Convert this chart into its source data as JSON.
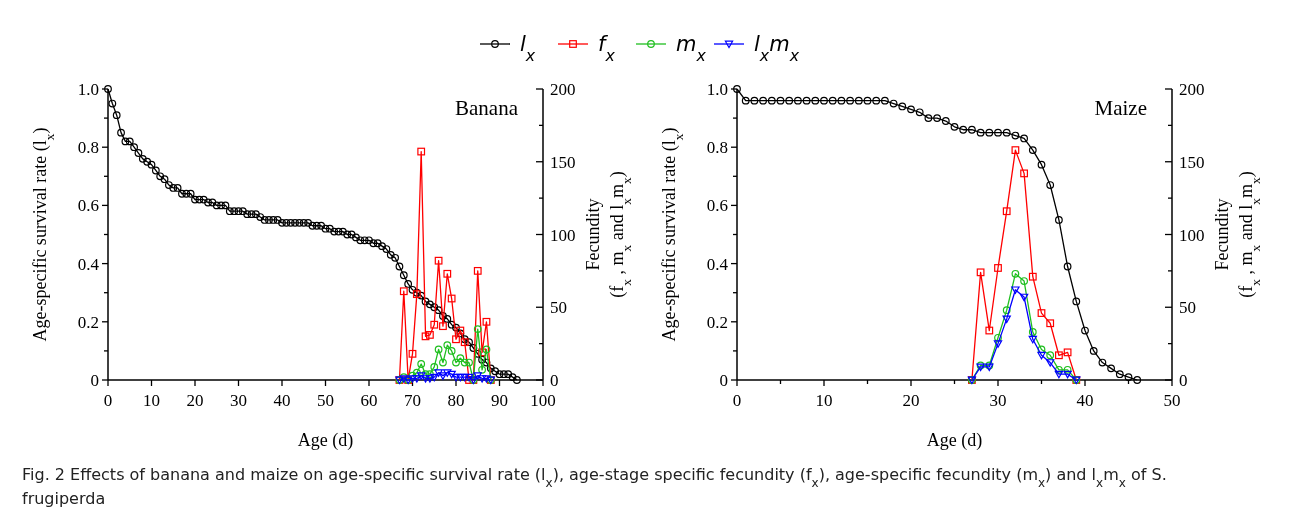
{
  "chart_data": [
    {
      "type": "line",
      "title": "Banana",
      "xlabel": "Age (d)",
      "ylabel": "Age-specific survival rate (l$_{x}$)",
      "y2label": "Fecundity\n(f$_{x}$ , m$_{x}$ and l$_{x}$m$_{x}$)",
      "legend": "top",
      "grid": false,
      "annotations": [
        "Fig. 2  Effects of banana and maize on age-specific survival rate (l$_{x}$), age-stage specific fecundity (f$_{x}$), age-specific fecundity (m$_{x}$) and l$_{x}$m$_{x}$ of S. frugiperda"
      ],
      "xlim": [
        0,
        100
      ],
      "xticks": [
        0,
        10,
        20,
        30,
        40,
        50,
        60,
        70,
        80,
        90,
        100
      ],
      "ylim": [
        0,
        1
      ],
      "yticks": [
        0,
        {
          "value": 0.1,
          "label": null
        },
        0.2,
        {
          "value": 0.3,
          "label": null
        },
        0.4,
        {
          "value": 0.5,
          "label": null
        },
        0.6,
        {
          "value": 0.7,
          "label": null
        },
        0.8,
        {
          "value": 0.9,
          "label": null
        },
        {
          "value": 1,
          "label": "1.0"
        }
      ],
      "y2lim": [
        0,
        200
      ],
      "y2ticks": [
        0,
        {
          "value": 25,
          "label": null
        },
        50,
        {
          "value": 75,
          "label": null
        },
        100,
        {
          "value": 125,
          "label": null
        },
        150,
        {
          "value": 175,
          "label": null
        },
        200
      ],
      "series": [
        {
          "name": "l$_{x}$",
          "color": "#000000",
          "marker": "circle",
          "x": [
            0,
            1,
            2,
            3,
            4,
            5,
            6,
            7,
            8,
            9,
            10,
            11,
            12,
            13,
            14,
            15,
            16,
            17,
            18,
            19,
            20,
            21,
            22,
            23,
            24,
            25,
            26,
            27,
            28,
            29,
            30,
            31,
            32,
            33,
            34,
            35,
            36,
            37,
            38,
            39,
            40,
            41,
            42,
            43,
            44,
            45,
            46,
            47,
            48,
            49,
            50,
            51,
            52,
            53,
            54,
            55,
            56,
            57,
            58,
            59,
            60,
            61,
            62,
            63,
            64,
            65,
            66,
            67,
            68,
            69,
            70,
            71,
            72,
            73,
            74,
            75,
            76,
            77,
            78,
            79,
            80,
            81,
            82,
            83,
            84,
            85,
            86,
            87,
            88,
            89,
            90,
            91,
            92,
            93,
            94
          ],
          "values": [
            1.0,
            0.95,
            0.91,
            0.85,
            0.82,
            0.82,
            0.8,
            0.78,
            0.76,
            0.75,
            0.74,
            0.72,
            0.7,
            0.69,
            0.67,
            0.66,
            0.66,
            0.64,
            0.64,
            0.64,
            0.62,
            0.62,
            0.62,
            0.61,
            0.61,
            0.6,
            0.6,
            0.6,
            0.58,
            0.58,
            0.58,
            0.58,
            0.57,
            0.57,
            0.57,
            0.56,
            0.55,
            0.55,
            0.55,
            0.55,
            0.54,
            0.54,
            0.54,
            0.54,
            0.54,
            0.54,
            0.54,
            0.53,
            0.53,
            0.53,
            0.52,
            0.52,
            0.51,
            0.51,
            0.51,
            0.5,
            0.5,
            0.49,
            0.48,
            0.48,
            0.48,
            0.47,
            0.47,
            0.46,
            0.45,
            0.43,
            0.42,
            0.39,
            0.36,
            0.33,
            0.31,
            0.3,
            0.29,
            0.27,
            0.26,
            0.25,
            0.24,
            0.22,
            0.21,
            0.19,
            0.18,
            0.16,
            0.14,
            0.13,
            0.11,
            0.09,
            0.07,
            0.06,
            0.04,
            0.03,
            0.02,
            0.02,
            0.02,
            0.01,
            0
          ]
        },
        {
          "name": "f$_{x}$",
          "color": "#ff0000",
          "marker": "square",
          "axis": "y2",
          "x": [
            67,
            68,
            69,
            70,
            71,
            72,
            73,
            74,
            75,
            76,
            77,
            78,
            79,
            80,
            81,
            82,
            83,
            84,
            85,
            86,
            87,
            88
          ],
          "values": [
            0,
            61,
            0,
            18,
            59,
            157,
            30,
            31,
            38,
            82,
            37,
            73,
            56,
            28,
            34,
            26,
            0,
            0,
            75,
            19,
            40,
            0
          ]
        },
        {
          "name": "m$_{x}$",
          "color": "#1fbf1f",
          "marker": "circle",
          "axis": "y2",
          "x": [
            67,
            68,
            69,
            70,
            71,
            72,
            73,
            74,
            75,
            76,
            77,
            78,
            79,
            80,
            81,
            82,
            83,
            84,
            85,
            86,
            87,
            88
          ],
          "values": [
            0,
            2,
            0,
            3,
            5,
            11,
            4,
            4,
            9,
            21,
            12,
            24,
            20,
            12,
            15,
            12,
            12,
            0,
            35,
            7,
            21,
            0
          ]
        },
        {
          "name": "l$_{x}$m$_{x}$",
          "color": "#0000ff",
          "marker": "triangle",
          "axis": "y2",
          "x": [
            67,
            68,
            69,
            70,
            71,
            72,
            73,
            74,
            75,
            76,
            77,
            78,
            79,
            80,
            81,
            82,
            83,
            84,
            85,
            86,
            87,
            88
          ],
          "values": [
            0,
            1,
            0,
            1,
            1,
            3,
            1,
            1,
            2,
            5,
            3,
            5,
            4,
            2,
            2,
            2,
            2,
            0,
            3,
            1,
            1,
            0
          ]
        }
      ]
    },
    {
      "type": "line",
      "title": "Maize",
      "xlabel": "Age (d)",
      "ylabel": "Age-specific survival rate (l$_{x}$)",
      "y2label": "Fecundity\n(f$_{x}$ , m$_{x}$ and l$_{x}$m$_{x}$)",
      "grid": false,
      "xlim": [
        0,
        50
      ],
      "xticks": [
        0,
        {
          "value": 5,
          "label": null
        },
        10,
        {
          "value": 15,
          "label": null
        },
        20,
        {
          "value": 25,
          "label": null
        },
        30,
        {
          "value": 35,
          "label": null
        },
        40,
        {
          "value": 45,
          "label": null
        },
        50
      ],
      "ylim": [
        0,
        1
      ],
      "yticks": [
        0,
        {
          "value": 0.1,
          "label": null
        },
        0.2,
        {
          "value": 0.3,
          "label": null
        },
        0.4,
        {
          "value": 0.5,
          "label": null
        },
        0.6,
        {
          "value": 0.7,
          "label": null
        },
        0.8,
        {
          "value": 0.9,
          "label": null
        },
        {
          "value": 1,
          "label": "1.0"
        }
      ],
      "y2lim": [
        0,
        200
      ],
      "y2ticks": [
        0,
        {
          "value": 25,
          "label": null
        },
        50,
        {
          "value": 75,
          "label": null
        },
        100,
        {
          "value": 125,
          "label": null
        },
        150,
        {
          "value": 175,
          "label": null
        },
        200
      ],
      "series": [
        {
          "color": "#000000",
          "marker": "circle",
          "x": [
            0,
            1,
            2,
            3,
            4,
            5,
            6,
            7,
            8,
            9,
            10,
            11,
            12,
            13,
            14,
            15,
            16,
            17,
            18,
            19,
            20,
            21,
            22,
            23,
            24,
            25,
            26,
            27,
            28,
            29,
            30,
            31,
            32,
            33,
            34,
            35,
            36,
            37,
            38,
            39,
            40,
            41,
            42,
            43,
            44,
            45,
            46
          ],
          "values": [
            1.0,
            0.96,
            0.96,
            0.96,
            0.96,
            0.96,
            0.96,
            0.96,
            0.96,
            0.96,
            0.96,
            0.96,
            0.96,
            0.96,
            0.96,
            0.96,
            0.96,
            0.96,
            0.95,
            0.94,
            0.93,
            0.92,
            0.9,
            0.9,
            0.89,
            0.87,
            0.86,
            0.86,
            0.85,
            0.85,
            0.85,
            0.85,
            0.84,
            0.83,
            0.79,
            0.74,
            0.67,
            0.55,
            0.39,
            0.27,
            0.17,
            0.1,
            0.06,
            0.04,
            0.02,
            0.01,
            0
          ]
        },
        {
          "color": "#ff0000",
          "marker": "square",
          "axis": "y2",
          "x": [
            27,
            28,
            29,
            30,
            31,
            32,
            33,
            34,
            35,
            36,
            37,
            38,
            39
          ],
          "values": [
            0,
            74,
            34,
            77,
            116,
            158,
            142,
            71,
            46,
            39,
            17,
            19,
            0
          ]
        },
        {
          "color": "#1fbf1f",
          "marker": "circle",
          "axis": "y2",
          "x": [
            27,
            28,
            29,
            30,
            31,
            32,
            33,
            34,
            35,
            36,
            37,
            38,
            39
          ],
          "values": [
            0,
            10,
            10,
            29,
            48,
            73,
            68,
            33,
            21,
            17,
            7,
            7,
            0
          ]
        },
        {
          "color": "#0000ff",
          "marker": "triangle",
          "axis": "y2",
          "x": [
            27,
            28,
            29,
            30,
            31,
            32,
            33,
            34,
            35,
            36,
            37,
            38,
            39
          ],
          "values": [
            0,
            9,
            9,
            25,
            42,
            62,
            57,
            28,
            17,
            12,
            4,
            4,
            0
          ]
        }
      ]
    }
  ]
}
